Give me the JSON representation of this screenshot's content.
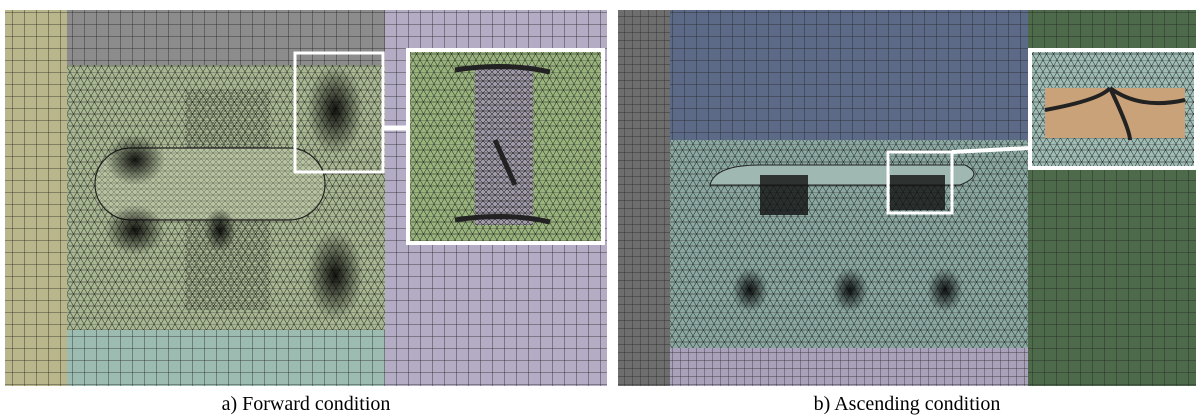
{
  "figure": {
    "panels": [
      {
        "caption": "a) Forward condition"
      },
      {
        "caption": "b) Ascending condition"
      }
    ]
  }
}
